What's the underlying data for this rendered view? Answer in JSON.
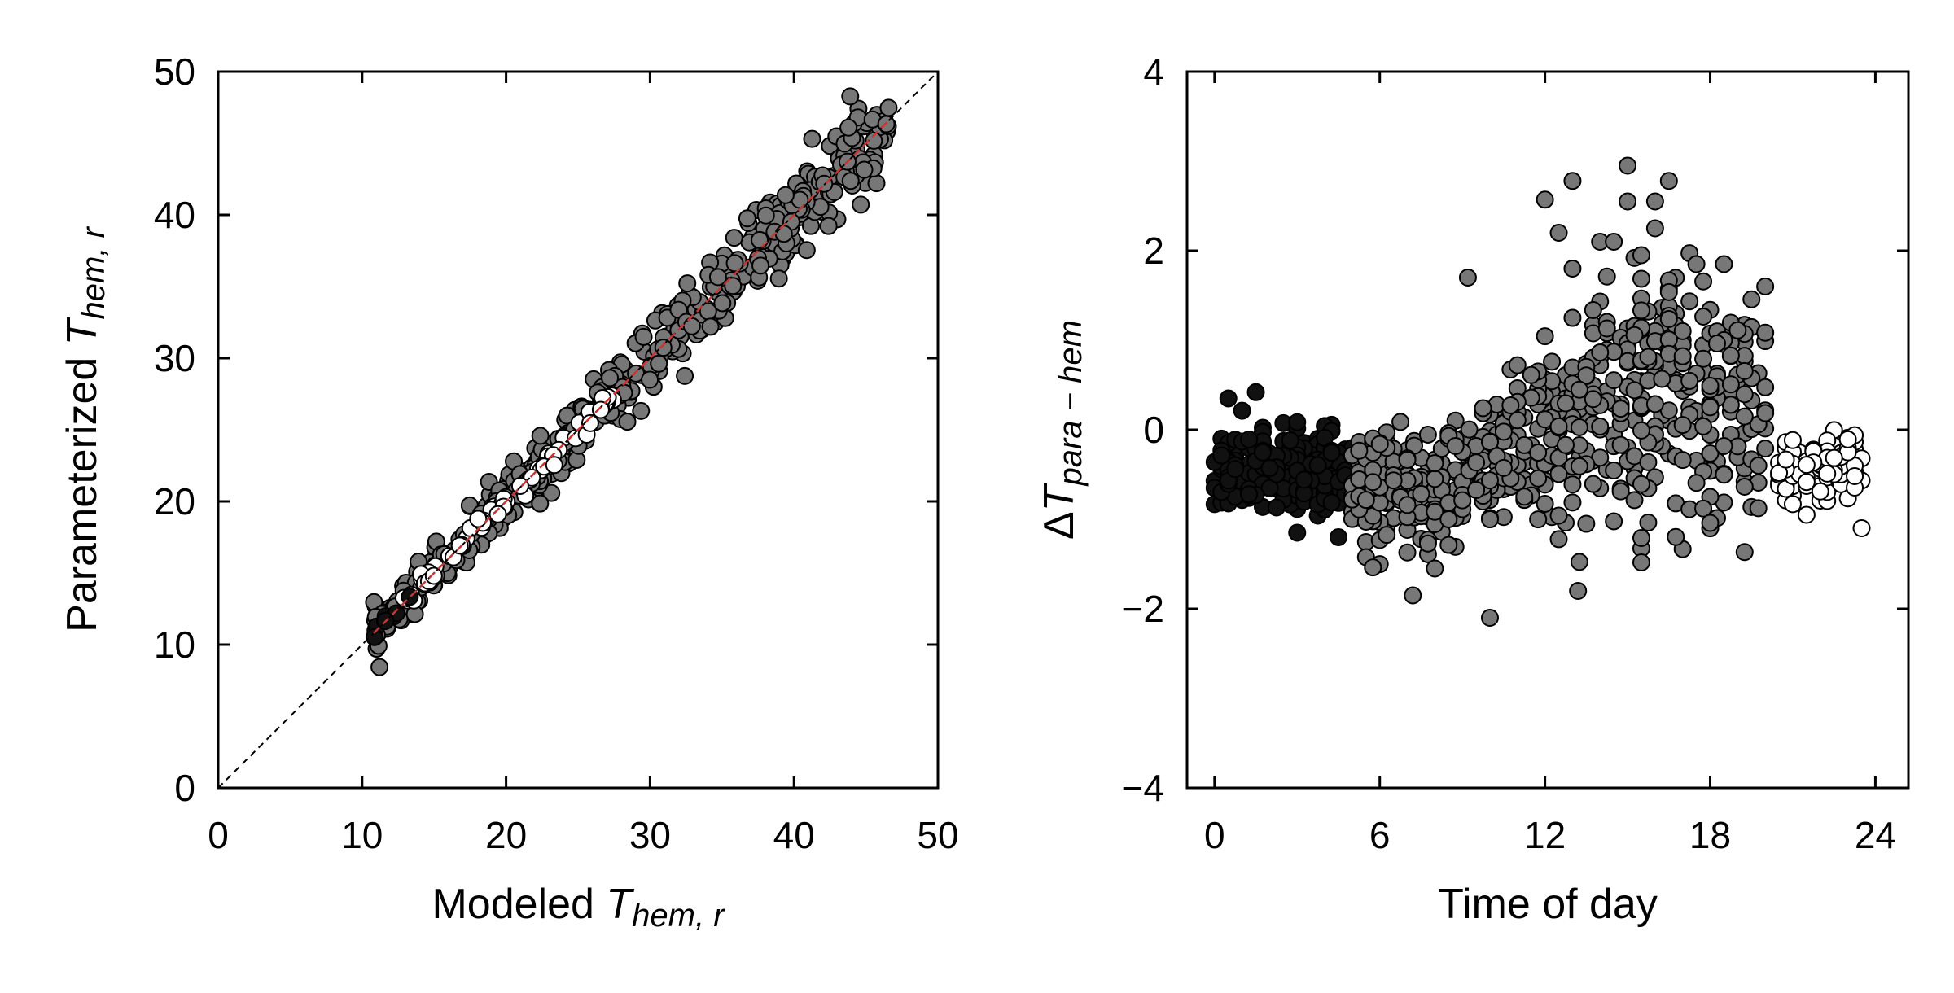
{
  "chart_data": [
    {
      "type": "scatter",
      "xlabel": {
        "prefix": "Modeled ",
        "var": "T",
        "sub": "hem, r"
      },
      "ylabel": {
        "prefix": "Parameterized ",
        "var": "T",
        "sub": "hem, r"
      },
      "xlim": [
        0,
        50
      ],
      "ylim": [
        0,
        50
      ],
      "xticks": [
        0,
        10,
        20,
        30,
        40,
        50
      ],
      "yticks": [
        0,
        10,
        20,
        30,
        40,
        50
      ],
      "reference_line": "1:1 dashed",
      "fit_line_color": "#cc3333",
      "grid": false,
      "series": [
        {
          "fill": "#777777",
          "x_range": [
            10.8,
            46.6
          ],
          "spread": 1.1
        },
        {
          "fill": "#ffffff",
          "x_range": [
            12.5,
            27.5
          ],
          "spread": 0.35
        },
        {
          "fill": "#111111",
          "x_range": [
            10.8,
            13.5
          ],
          "spread": 0.3
        }
      ]
    },
    {
      "type": "scatter",
      "xlabel": "Time of day",
      "ylabel": {
        "prefix": "Δ",
        "var": "T",
        "sub": "para − hem"
      },
      "xlim": [
        -1,
        25.2
      ],
      "ylim": [
        -4,
        4
      ],
      "xticks": [
        0,
        6,
        12,
        18,
        24
      ],
      "yticks": [
        -4,
        -2,
        0,
        2,
        4
      ],
      "ytick_labels": [
        "−4",
        "−2",
        "0",
        "2",
        "4"
      ],
      "grid": false,
      "series": [
        {
          "fill": "#111111",
          "x_range": [
            0,
            5
          ],
          "y_center": -0.45,
          "y_spread": 0.35
        },
        {
          "fill": "#777777",
          "x_range": [
            5,
            20
          ],
          "y_trend": [
            [
              5,
              -0.6
            ],
            [
              8,
              -0.7
            ],
            [
              11,
              -0.3
            ],
            [
              14,
              0.2
            ],
            [
              17,
              0.5
            ],
            [
              20,
              0.1
            ]
          ],
          "y_spread": 0.7
        },
        {
          "fill": "#ffffff",
          "x_range": [
            20.5,
            23.5
          ],
          "y_center": -0.4,
          "y_spread": 0.3
        }
      ],
      "notable_points": [
        {
          "x": 15,
          "y": 2.95
        },
        {
          "x": 16.5,
          "y": 2.78
        },
        {
          "x": 13,
          "y": 2.78
        },
        {
          "x": 12,
          "y": 2.57
        },
        {
          "x": 15,
          "y": 2.55
        },
        {
          "x": 16,
          "y": 2.55
        },
        {
          "x": 12.5,
          "y": 2.2
        },
        {
          "x": 16,
          "y": 2.25
        },
        {
          "x": 14,
          "y": 2.1
        },
        {
          "x": 14.5,
          "y": 2.1
        },
        {
          "x": 15.5,
          "y": 1.95
        },
        {
          "x": 17.5,
          "y": 1.85
        },
        {
          "x": 18.5,
          "y": 1.85
        },
        {
          "x": 9.2,
          "y": 1.7
        },
        {
          "x": 13,
          "y": 1.8
        },
        {
          "x": 10,
          "y": -2.1
        },
        {
          "x": 13.2,
          "y": -1.8
        },
        {
          "x": 7.2,
          "y": -1.85
        },
        {
          "x": 8,
          "y": -1.55
        },
        {
          "x": 1.5,
          "y": 0.42
        },
        {
          "x": 0.5,
          "y": 0.35
        },
        {
          "x": 23.5,
          "y": -1.1
        },
        {
          "x": 21.5,
          "y": -0.95
        },
        {
          "x": 3,
          "y": -1.15
        },
        {
          "x": 4.5,
          "y": -1.2
        }
      ]
    }
  ]
}
